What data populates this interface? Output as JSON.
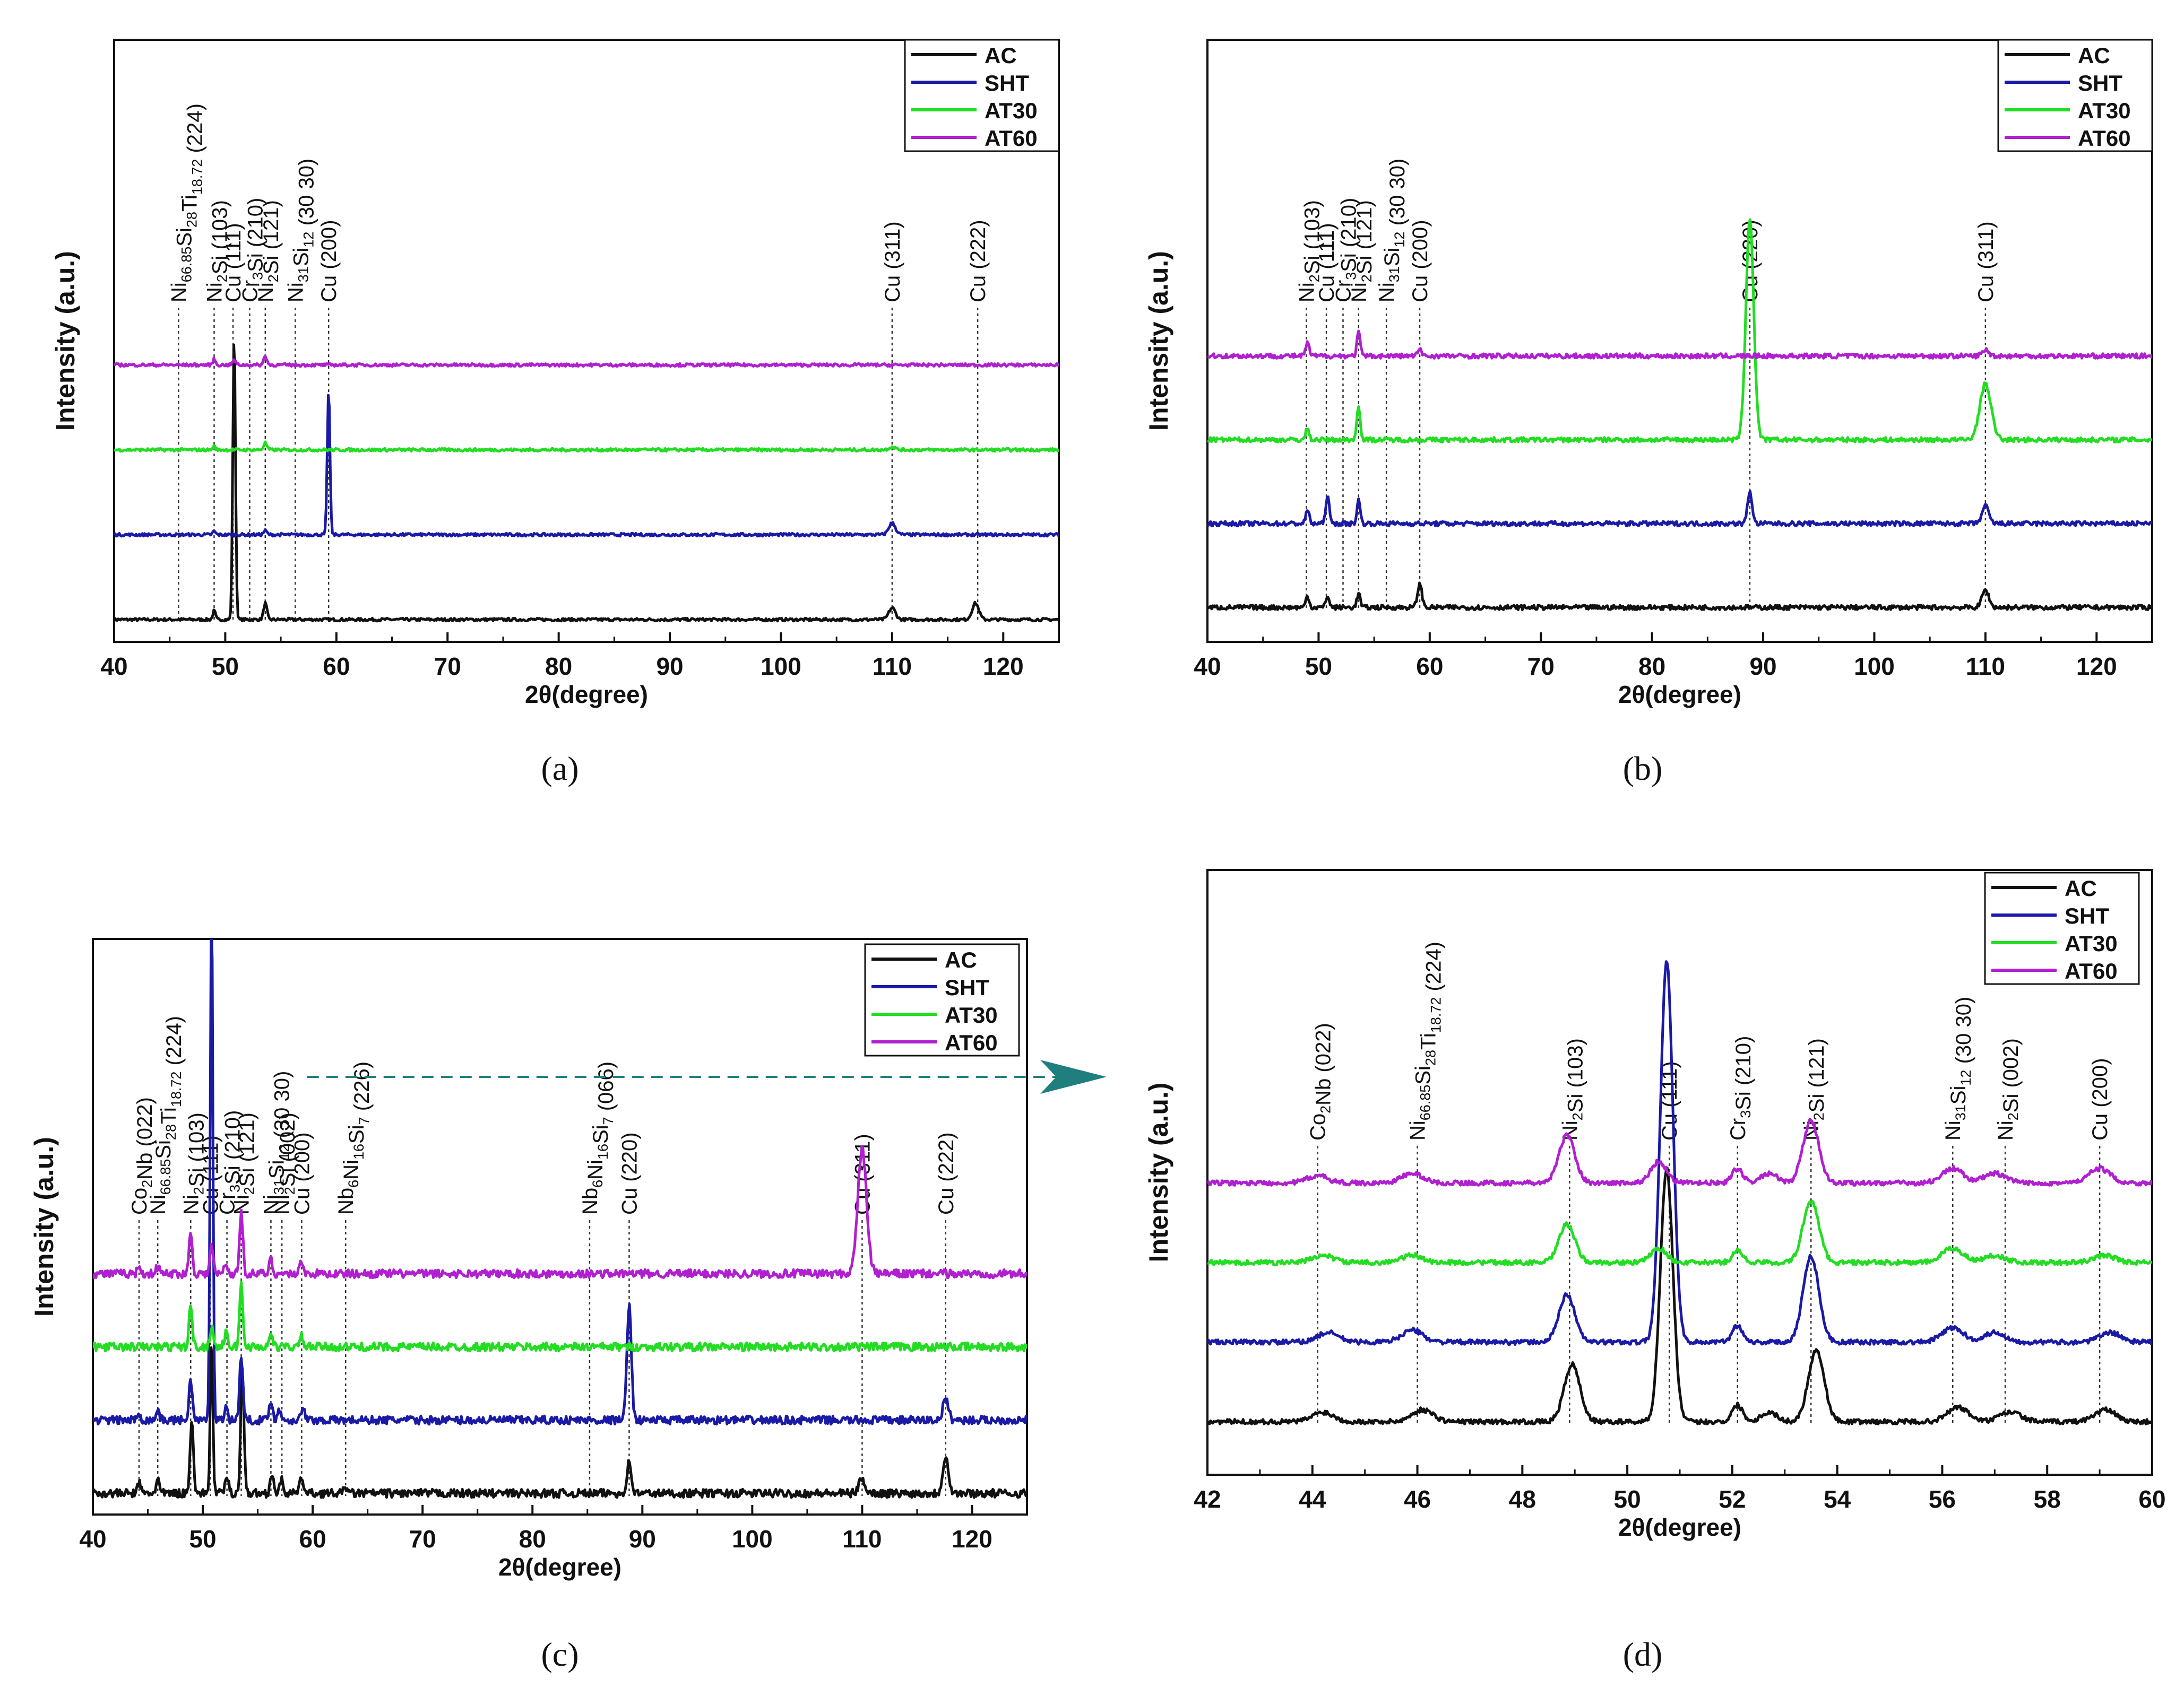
{
  "colors": {
    "AC": "#111111",
    "SHT": "#1a1aa6",
    "AT30": "#22dd22",
    "AT60": "#b01fd0",
    "arrow": "#1f7f7f"
  },
  "panels": {
    "a": {
      "caption": "(a)"
    },
    "b": {
      "caption": "(b)"
    },
    "c": {
      "caption": "(c)"
    },
    "d": {
      "caption": "(d)"
    }
  },
  "chart_data": [
    {
      "id": "a",
      "type": "line",
      "title": "",
      "xlabel": "2θ(degree)",
      "ylabel": "Intensity (a.u.)",
      "xlim": [
        40,
        125
      ],
      "xticks": [
        40,
        50,
        60,
        70,
        80,
        90,
        100,
        110,
        120
      ],
      "legend": [
        "AC",
        "SHT",
        "AT30",
        "AT60"
      ],
      "legend_position": "top-right",
      "series": [
        {
          "name": "AC",
          "offset": 0,
          "noise": 0.05,
          "peaks": [
            [
              49,
              0.15,
              0.12
            ],
            [
              50.8,
              4.9,
              0.12
            ],
            [
              53.6,
              0.28,
              0.15
            ],
            [
              110,
              0.2,
              0.3
            ],
            [
              117.5,
              0.28,
              0.3
            ]
          ]
        },
        {
          "name": "SHT",
          "offset": 1,
          "noise": 0.05,
          "peaks": [
            [
              49,
              0.06,
              0.12
            ],
            [
              53.6,
              0.07,
              0.15
            ],
            [
              59.3,
              2.5,
              0.12
            ],
            [
              110,
              0.2,
              0.3
            ]
          ]
        },
        {
          "name": "AT30",
          "offset": 2,
          "noise": 0.05,
          "peaks": [
            [
              49,
              0.06,
              0.12
            ],
            [
              53.6,
              0.12,
              0.15
            ],
            [
              110,
              0.05,
              0.3
            ]
          ]
        },
        {
          "name": "AT60",
          "offset": 3,
          "noise": 0.05,
          "peaks": [
            [
              49,
              0.1,
              0.12
            ],
            [
              50.8,
              0.08,
              0.15
            ],
            [
              53.6,
              0.15,
              0.15
            ]
          ]
        }
      ],
      "annotations": [
        {
          "x": 45.8,
          "label": "Ni66.85Si28Ti18.72 (224)"
        },
        {
          "x": 49.0,
          "label": "Ni2Si (103)"
        },
        {
          "x": 50.7,
          "label": "Cu (111)"
        },
        {
          "x": 52.2,
          "label": "Cr3Si (210)"
        },
        {
          "x": 53.6,
          "label": "Ni2Si (121)"
        },
        {
          "x": 56.3,
          "label": "Ni31Si12 (30 30)"
        },
        {
          "x": 59.3,
          "label": "Cu (200)"
        },
        {
          "x": 110.0,
          "label": "Cu (311)"
        },
        {
          "x": 117.7,
          "label": "Cu (222)"
        }
      ]
    },
    {
      "id": "b",
      "type": "line",
      "title": "",
      "xlabel": "2θ(degree)",
      "ylabel": "Intensity (a.u.)",
      "xlim": [
        40,
        125
      ],
      "xticks": [
        40,
        50,
        60,
        70,
        80,
        90,
        100,
        110,
        120
      ],
      "legend": [
        "AC",
        "SHT",
        "AT30",
        "AT60"
      ],
      "legend_position": "top-right",
      "series": [
        {
          "name": "AC",
          "offset": 0,
          "noise": 0.04,
          "peaks": [
            [
              49,
              0.1,
              0.15
            ],
            [
              50.8,
              0.1,
              0.15
            ],
            [
              53.6,
              0.12,
              0.15
            ],
            [
              59.1,
              0.2,
              0.2
            ],
            [
              110,
              0.15,
              0.3
            ]
          ]
        },
        {
          "name": "SHT",
          "offset": 1,
          "noise": 0.04,
          "peaks": [
            [
              49,
              0.12,
              0.15
            ],
            [
              50.8,
              0.25,
              0.15
            ],
            [
              53.6,
              0.2,
              0.15
            ],
            [
              88.8,
              0.28,
              0.2
            ],
            [
              110,
              0.15,
              0.3
            ]
          ]
        },
        {
          "name": "AT30",
          "offset": 2,
          "noise": 0.04,
          "peaks": [
            [
              49,
              0.1,
              0.15
            ],
            [
              53.6,
              0.3,
              0.15
            ],
            [
              88.8,
              1.9,
              0.35
            ],
            [
              110,
              0.48,
              0.5
            ]
          ]
        },
        {
          "name": "AT60",
          "offset": 3,
          "noise": 0.04,
          "peaks": [
            [
              49,
              0.12,
              0.15
            ],
            [
              53.6,
              0.2,
              0.15
            ],
            [
              59.1,
              0.05,
              0.2
            ],
            [
              110,
              0.05,
              0.3
            ]
          ]
        }
      ],
      "annotations": [
        {
          "x": 48.9,
          "label": "Ni2Si (103)"
        },
        {
          "x": 50.7,
          "label": "Cu (111)"
        },
        {
          "x": 52.2,
          "label": "Cr3Si (210)"
        },
        {
          "x": 53.6,
          "label": "Ni2Si (121)"
        },
        {
          "x": 56.1,
          "label": "Ni31Si12 (30 30)"
        },
        {
          "x": 59.1,
          "label": "Cu (200)"
        },
        {
          "x": 88.8,
          "label": "Cu (220)"
        },
        {
          "x": 110.0,
          "label": "Cu (311)"
        }
      ]
    },
    {
      "id": "c",
      "type": "line",
      "title": "",
      "xlabel": "2θ(degree)",
      "ylabel": "Intensity (a.u.)",
      "xlim": [
        40,
        125
      ],
      "xticks": [
        40,
        50,
        60,
        70,
        80,
        90,
        100,
        110,
        120
      ],
      "legend": [
        "AC",
        "SHT",
        "AT30",
        "AT60"
      ],
      "legend_position": "top-right",
      "series": [
        {
          "name": "AC",
          "offset": 0,
          "noise": 0.12,
          "peaks": [
            [
              44.2,
              0.15,
              0.15
            ],
            [
              45.9,
              0.2,
              0.15
            ],
            [
              49,
              1.1,
              0.15
            ],
            [
              50.8,
              2.2,
              0.12
            ],
            [
              52.2,
              0.25,
              0.15
            ],
            [
              53.6,
              1.8,
              0.15
            ],
            [
              56.3,
              0.3,
              0.15
            ],
            [
              57.2,
              0.2,
              0.15
            ],
            [
              59,
              0.25,
              0.15
            ],
            [
              63,
              0.1,
              0.15
            ],
            [
              88.8,
              0.45,
              0.2
            ],
            [
              110,
              0.2,
              0.3
            ],
            [
              117.6,
              0.55,
              0.25
            ]
          ]
        },
        {
          "name": "SHT",
          "offset": 1,
          "noise": 0.12,
          "peaks": [
            [
              44.2,
              0.1,
              0.15
            ],
            [
              45.9,
              0.15,
              0.15
            ],
            [
              48.9,
              0.6,
              0.15
            ],
            [
              50.8,
              7.6,
              0.12
            ],
            [
              52.1,
              0.2,
              0.15
            ],
            [
              53.5,
              0.95,
              0.15
            ],
            [
              56.2,
              0.3,
              0.15
            ],
            [
              57,
              0.15,
              0.15
            ],
            [
              59.1,
              0.2,
              0.15
            ],
            [
              88.8,
              1.7,
              0.2
            ],
            [
              117.6,
              0.3,
              0.25
            ]
          ]
        },
        {
          "name": "AT30",
          "offset": 2,
          "noise": 0.12,
          "peaks": [
            [
              48.9,
              0.6,
              0.15
            ],
            [
              50.8,
              0.3,
              0.15
            ],
            [
              52.1,
              0.2,
              0.15
            ],
            [
              53.5,
              0.9,
              0.15
            ],
            [
              56.2,
              0.2,
              0.15
            ],
            [
              59,
              0.15,
              0.15
            ]
          ]
        },
        {
          "name": "AT60",
          "offset": 3,
          "noise": 0.12,
          "peaks": [
            [
              44.2,
              0.1,
              0.15
            ],
            [
              45.9,
              0.1,
              0.15
            ],
            [
              48.9,
              0.6,
              0.15
            ],
            [
              50.8,
              0.4,
              0.15
            ],
            [
              52.1,
              0.15,
              0.15
            ],
            [
              53.5,
              0.9,
              0.15
            ],
            [
              56.2,
              0.2,
              0.15
            ],
            [
              59,
              0.2,
              0.15
            ],
            [
              110,
              1.8,
              0.4
            ]
          ]
        }
      ],
      "annotations": [
        {
          "x": 44.2,
          "label": "Co2Nb (022)"
        },
        {
          "x": 45.9,
          "label": "Ni66.85Si28Ti18.72 (224)"
        },
        {
          "x": 48.9,
          "label": "Ni2Si (103)"
        },
        {
          "x": 50.7,
          "label": "Cu (111)"
        },
        {
          "x": 52.2,
          "label": "Cr3Si (210)"
        },
        {
          "x": 53.5,
          "label": "Ni2Si (121)"
        },
        {
          "x": 56.2,
          "label": "Ni31Si12 (30 30)"
        },
        {
          "x": 57.2,
          "label": "Ni2Si (002)"
        },
        {
          "x": 59.0,
          "label": "Cu (200)"
        },
        {
          "x": 63.0,
          "label": "Nb6Ni16Si7 (226)"
        },
        {
          "x": 85.2,
          "label": "Nb6Ni16Si7 (066)"
        },
        {
          "x": 88.8,
          "label": "Cu (220)"
        },
        {
          "x": 110.0,
          "label": "Cu (311)"
        },
        {
          "x": 117.6,
          "label": "Cu (222)"
        }
      ]
    },
    {
      "id": "d",
      "type": "line",
      "title": "",
      "xlabel": "2θ(degree)",
      "ylabel": "Intensity (a.u.)",
      "xlim": [
        42,
        60
      ],
      "xticks": [
        42,
        44,
        46,
        48,
        50,
        52,
        54,
        56,
        58,
        60
      ],
      "legend": [
        "AC",
        "SHT",
        "AT30",
        "AT60"
      ],
      "legend_position": "top-right",
      "series": [
        {
          "name": "AC",
          "offset": 0,
          "noise": 0.1,
          "peaks": [
            [
              44.2,
              0.2,
              0.2
            ],
            [
              46.1,
              0.25,
              0.2
            ],
            [
              48.95,
              1.2,
              0.15
            ],
            [
              50.75,
              5.3,
              0.12
            ],
            [
              52.1,
              0.35,
              0.1
            ],
            [
              52.7,
              0.2,
              0.15
            ],
            [
              53.6,
              1.5,
              0.15
            ],
            [
              56.3,
              0.3,
              0.2
            ],
            [
              57.3,
              0.2,
              0.2
            ],
            [
              59.1,
              0.25,
              0.2
            ]
          ]
        },
        {
          "name": "SHT",
          "offset": 1,
          "noise": 0.1,
          "peaks": [
            [
              44.3,
              0.2,
              0.2
            ],
            [
              45.9,
              0.25,
              0.2
            ],
            [
              48.85,
              1.0,
              0.15
            ],
            [
              50.75,
              8.0,
              0.12
            ],
            [
              52.1,
              0.35,
              0.1
            ],
            [
              53.5,
              1.8,
              0.15
            ],
            [
              56.2,
              0.3,
              0.2
            ],
            [
              57,
              0.2,
              0.2
            ],
            [
              59.2,
              0.2,
              0.2
            ]
          ]
        },
        {
          "name": "AT30",
          "offset": 2,
          "noise": 0.1,
          "peaks": [
            [
              44.2,
              0.15,
              0.2
            ],
            [
              45.9,
              0.15,
              0.2
            ],
            [
              48.85,
              0.8,
              0.15
            ],
            [
              50.6,
              0.3,
              0.15
            ],
            [
              52.1,
              0.25,
              0.1
            ],
            [
              53.5,
              1.3,
              0.15
            ],
            [
              56.2,
              0.3,
              0.2
            ],
            [
              57,
              0.15,
              0.2
            ],
            [
              59.1,
              0.15,
              0.2
            ]
          ]
        },
        {
          "name": "AT60",
          "offset": 3,
          "noise": 0.1,
          "peaks": [
            [
              44.1,
              0.15,
              0.2
            ],
            [
              45.9,
              0.2,
              0.2
            ],
            [
              48.85,
              1.0,
              0.15
            ],
            [
              50.6,
              0.45,
              0.15
            ],
            [
              52.1,
              0.3,
              0.1
            ],
            [
              52.7,
              0.2,
              0.15
            ],
            [
              53.5,
              1.3,
              0.15
            ],
            [
              56.2,
              0.3,
              0.2
            ],
            [
              57,
              0.2,
              0.2
            ],
            [
              59,
              0.3,
              0.2
            ]
          ]
        }
      ],
      "annotations": [
        {
          "x": 44.1,
          "label": "Co2Nb (022)"
        },
        {
          "x": 46.0,
          "label": "Ni66.85Si28Ti18.72 (224)"
        },
        {
          "x": 48.9,
          "label": "Ni2Si (103)"
        },
        {
          "x": 50.8,
          "label": "Cu (111)"
        },
        {
          "x": 52.1,
          "label": "Cr3Si (210)"
        },
        {
          "x": 53.5,
          "label": "Ni2Si (121)"
        },
        {
          "x": 56.2,
          "label": "Ni31Si12 (30 30)"
        },
        {
          "x": 57.2,
          "label": "Ni2Si (002)"
        },
        {
          "x": 59.0,
          "label": "Cu (200)"
        }
      ]
    }
  ]
}
